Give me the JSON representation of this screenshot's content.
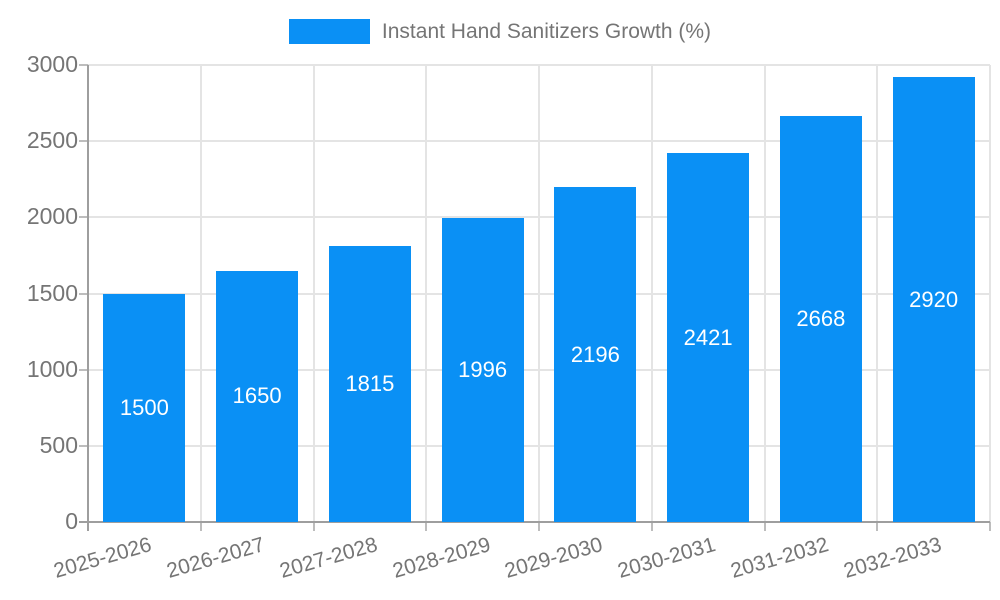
{
  "legend": {
    "label": "Instant Hand Sanitizers Growth (%)"
  },
  "chart_data": {
    "type": "bar",
    "title": "Instant Hand Sanitizers Growth (%)",
    "categories": [
      "2025-2026",
      "2026-2027",
      "2027-2028",
      "2028-2029",
      "2029-2030",
      "2030-2031",
      "2031-2032",
      "2032-2033"
    ],
    "values": [
      1500,
      1650,
      1815,
      1996,
      2196,
      2421,
      2668,
      2920
    ],
    "xlabel": "",
    "ylabel": "",
    "ylim": [
      0,
      3000
    ],
    "yticks": [
      0,
      500,
      1000,
      1500,
      2000,
      2500,
      3000
    ],
    "grid": true,
    "legend_position": "top",
    "bar_color": "#0a90f5",
    "data_label_color": "#ffffff",
    "axis_text_color": "#757575",
    "gridline_color": "#e4e4e4",
    "axis_line_color": "#9e9e9e"
  }
}
